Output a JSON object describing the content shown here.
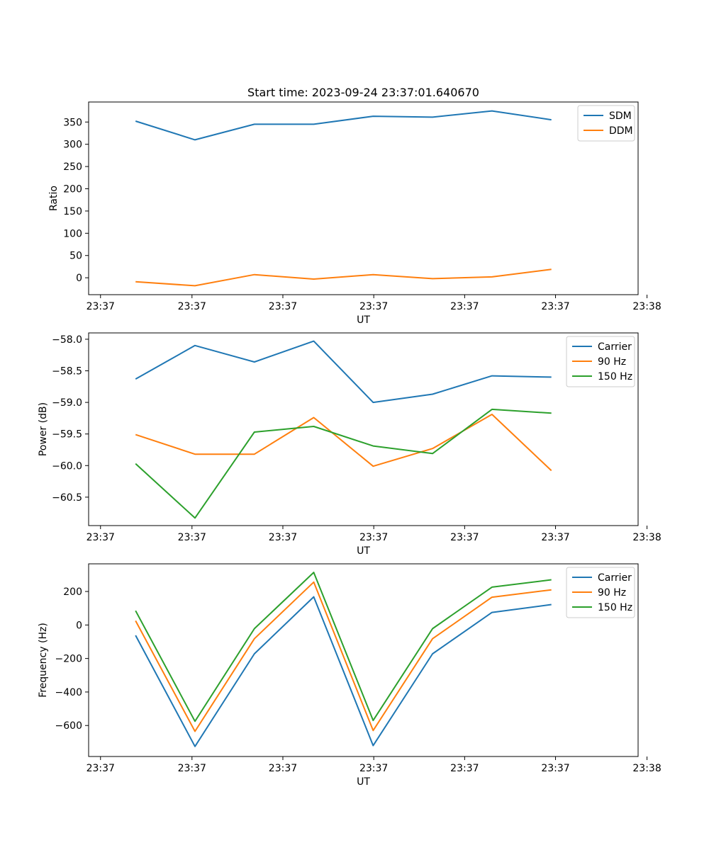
{
  "figure_title": "Start time: 2023-09-24 23:37:01.640670",
  "colors": {
    "blue": "#1f77b4",
    "orange": "#ff7f0e",
    "green": "#2ca02c"
  },
  "chart_data": [
    {
      "type": "line",
      "title": "Start time: 2023-09-24 23:37:01.640670",
      "xlabel": "UT",
      "ylabel": "Ratio",
      "x": [
        1,
        2,
        3,
        4,
        5,
        6,
        7,
        8
      ],
      "xlim": [
        0.21,
        9.46
      ],
      "x_ticks": [
        0.41,
        1.95,
        3.48,
        5.01,
        6.54,
        8.07,
        9.61
      ],
      "x_tick_labels": [
        "23:37",
        "23:37",
        "23:37",
        "23:37",
        "23:37",
        "23:37",
        "23:38"
      ],
      "ylim": [
        -38,
        395
      ],
      "y_ticks": [
        0,
        50,
        100,
        150,
        200,
        250,
        300,
        350
      ],
      "y_tick_labels": [
        "0",
        "50",
        "100",
        "150",
        "200",
        "250",
        "300",
        "350"
      ],
      "legend_position": "top-right",
      "series": [
        {
          "name": "SDM",
          "color": "#1f77b4",
          "values": [
            352,
            310,
            345,
            345,
            363,
            361,
            375,
            355
          ]
        },
        {
          "name": "DDM",
          "color": "#ff7f0e",
          "values": [
            -9,
            -18,
            7,
            -3,
            7,
            -2,
            2,
            19
          ]
        }
      ]
    },
    {
      "type": "line",
      "title": "",
      "xlabel": "UT",
      "ylabel": "Power (dB)",
      "x": [
        1,
        2,
        3,
        4,
        5,
        6,
        7,
        8
      ],
      "xlim": [
        0.21,
        9.46
      ],
      "x_ticks": [
        0.41,
        1.95,
        3.48,
        5.01,
        6.54,
        8.07,
        9.61
      ],
      "x_tick_labels": [
        "23:37",
        "23:37",
        "23:37",
        "23:37",
        "23:37",
        "23:37",
        "23:38"
      ],
      "ylim": [
        -60.95,
        -57.9
      ],
      "y_ticks": [
        -60.5,
        -60.0,
        -59.5,
        -59.0,
        -58.5,
        -58.0
      ],
      "y_tick_labels": [
        "−60.5",
        "−60.0",
        "−59.5",
        "−59.0",
        "−58.5",
        "−58.0"
      ],
      "legend_position": "top-right",
      "series": [
        {
          "name": "Carrier",
          "color": "#1f77b4",
          "values": [
            -58.63,
            -58.1,
            -58.36,
            -58.03,
            -59.0,
            -58.87,
            -58.58,
            -58.6
          ]
        },
        {
          "name": "90 Hz",
          "color": "#ff7f0e",
          "values": [
            -59.51,
            -59.82,
            -59.82,
            -59.24,
            -60.01,
            -59.73,
            -59.19,
            -60.08
          ]
        },
        {
          "name": "150 Hz",
          "color": "#2ca02c",
          "values": [
            -59.97,
            -60.83,
            -59.47,
            -59.38,
            -59.69,
            -59.81,
            -59.11,
            -59.17
          ]
        }
      ]
    },
    {
      "type": "line",
      "title": "",
      "xlabel": "UT",
      "ylabel": "Frequency (Hz)",
      "x": [
        1,
        2,
        3,
        4,
        5,
        6,
        7,
        8
      ],
      "xlim": [
        0.21,
        9.46
      ],
      "x_ticks": [
        0.41,
        1.95,
        3.48,
        5.01,
        6.54,
        8.07,
        9.61
      ],
      "x_tick_labels": [
        "23:37",
        "23:37",
        "23:37",
        "23:37",
        "23:37",
        "23:37",
        "23:38"
      ],
      "ylim": [
        -785,
        365
      ],
      "y_ticks": [
        -600,
        -400,
        -200,
        0,
        200
      ],
      "y_tick_labels": [
        "−600",
        "−400",
        "−200",
        "0",
        "200"
      ],
      "legend_position": "top-right",
      "series": [
        {
          "name": "Carrier",
          "color": "#1f77b4",
          "values": [
            -62,
            -725,
            -172,
            168,
            -720,
            -172,
            75,
            122
          ]
        },
        {
          "name": "90 Hz",
          "color": "#ff7f0e",
          "values": [
            25,
            -635,
            -82,
            256,
            -630,
            -82,
            166,
            210
          ]
        },
        {
          "name": "150 Hz",
          "color": "#2ca02c",
          "values": [
            85,
            -575,
            -22,
            314,
            -570,
            -22,
            226,
            270
          ]
        }
      ]
    }
  ]
}
